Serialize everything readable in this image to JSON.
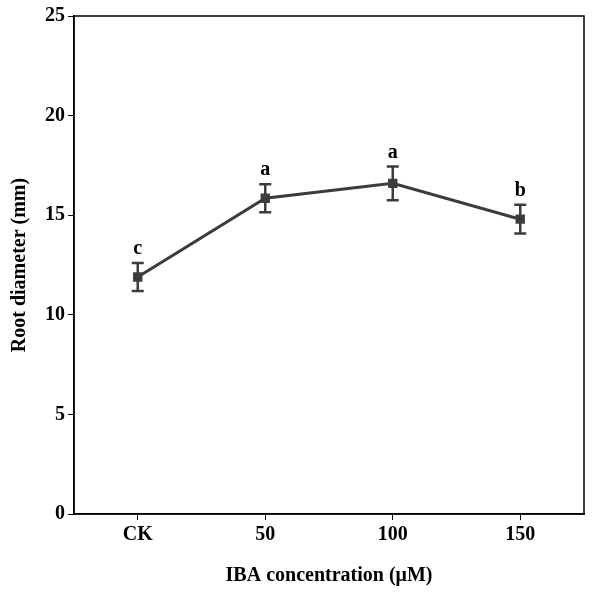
{
  "chart_data": {
    "type": "line",
    "x_label": "IBA concentration (μM)",
    "y_label": "Root diameter (mm)",
    "categories": [
      "CK",
      "50",
      "100",
      "150"
    ],
    "values": [
      11.9,
      15.85,
      16.6,
      14.8
    ],
    "errors": [
      0.7,
      0.7,
      0.85,
      0.72
    ],
    "annotations": [
      "c",
      "a",
      "a",
      "b"
    ],
    "color": "#3c3c3c",
    "marker": "square",
    "line_style": "solid",
    "ylim": [
      0,
      25
    ],
    "yticks": [
      0,
      5,
      10,
      15,
      20,
      25
    ],
    "grid": false
  }
}
